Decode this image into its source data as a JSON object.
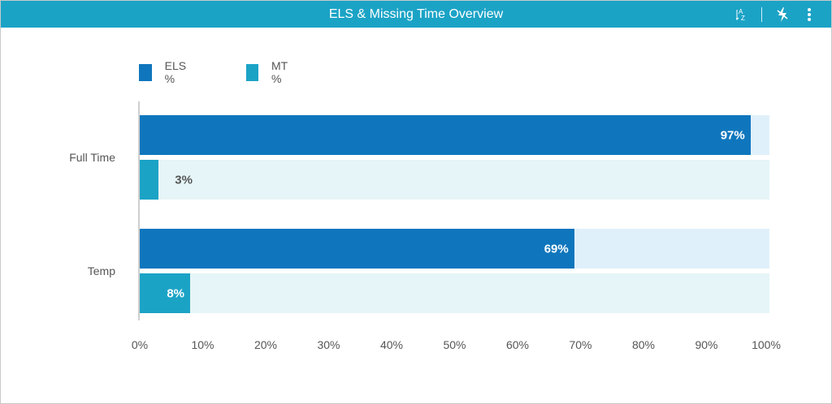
{
  "header": {
    "title": "ELS & Missing Time Overview",
    "sort_icon": "sort-az-icon",
    "spark_icon": "lightning-icon",
    "menu_icon": "more-vertical-icon"
  },
  "colors": {
    "header": "#1ba3c6",
    "els": "#0f76bd",
    "els_track": "#dff0fa",
    "mt": "#1ba3c6",
    "mt_track": "#e6f5f7"
  },
  "chart_data": {
    "type": "bar",
    "orientation": "horizontal",
    "categories": [
      "Full Time",
      "Temp"
    ],
    "series": [
      {
        "name": "ELS %",
        "values": [
          97,
          69
        ],
        "labels": [
          "97%",
          "69%"
        ]
      },
      {
        "name": "MT %",
        "values": [
          3,
          8
        ],
        "labels": [
          "3%",
          "8%"
        ]
      }
    ],
    "xlim": [
      0,
      100
    ],
    "xticks": [
      "0%",
      "10%",
      "20%",
      "30%",
      "40%",
      "50%",
      "60%",
      "70%",
      "80%",
      "90%",
      "100%"
    ],
    "grid": false,
    "legend": "top-left"
  }
}
